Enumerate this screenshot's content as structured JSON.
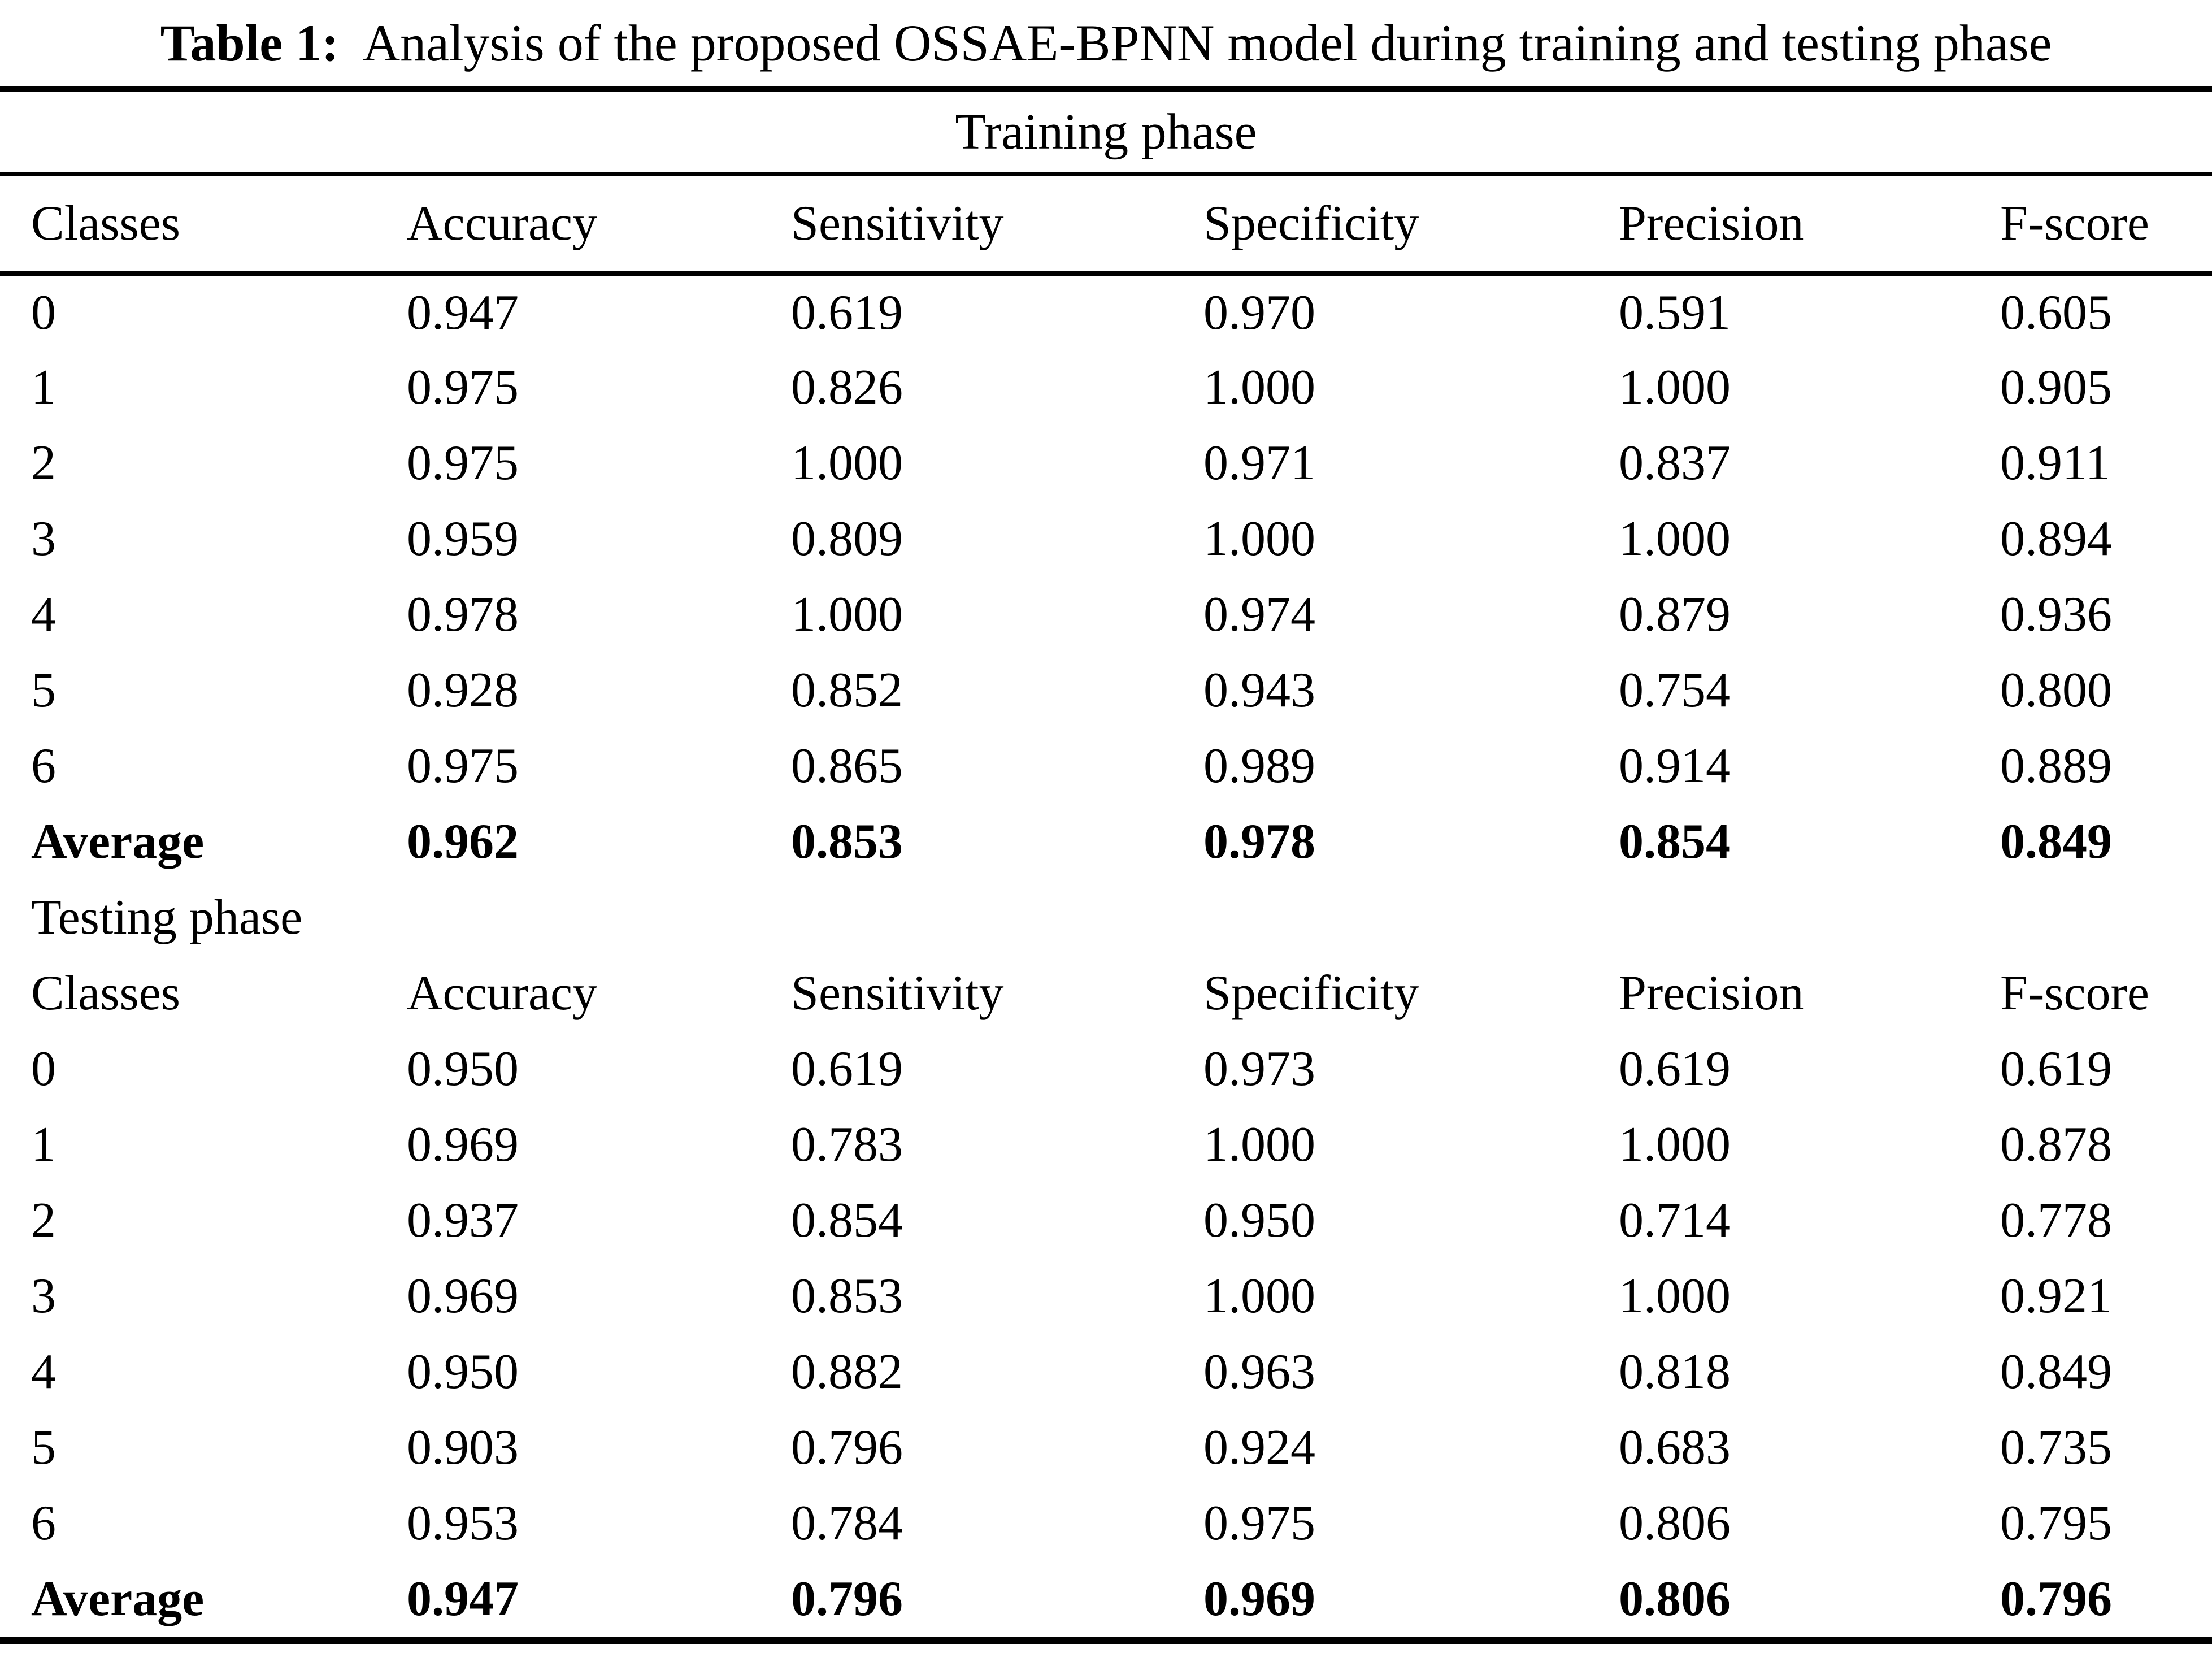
{
  "caption": {
    "label": "Table 1:",
    "text": "Analysis of the proposed OSSAE-BPNN model during training and testing phase"
  },
  "table": {
    "columns": [
      "Classes",
      "Accuracy",
      "Sensitivity",
      "Specificity",
      "Precision",
      "F-score"
    ],
    "sections": [
      {
        "title": "Training phase",
        "rows": [
          {
            "class": "0",
            "values": [
              "0.947",
              "0.619",
              "0.970",
              "0.591",
              "0.605"
            ],
            "bold": false
          },
          {
            "class": "1",
            "values": [
              "0.975",
              "0.826",
              "1.000",
              "1.000",
              "0.905"
            ],
            "bold": false
          },
          {
            "class": "2",
            "values": [
              "0.975",
              "1.000",
              "0.971",
              "0.837",
              "0.911"
            ],
            "bold": false
          },
          {
            "class": "3",
            "values": [
              "0.959",
              "0.809",
              "1.000",
              "1.000",
              "0.894"
            ],
            "bold": false
          },
          {
            "class": "4",
            "values": [
              "0.978",
              "1.000",
              "0.974",
              "0.879",
              "0.936"
            ],
            "bold": false
          },
          {
            "class": "5",
            "values": [
              "0.928",
              "0.852",
              "0.943",
              "0.754",
              "0.800"
            ],
            "bold": false
          },
          {
            "class": "6",
            "values": [
              "0.975",
              "0.865",
              "0.989",
              "0.914",
              "0.889"
            ],
            "bold": false
          },
          {
            "class": "Average",
            "values": [
              "0.962",
              "0.853",
              "0.978",
              "0.854",
              "0.849"
            ],
            "bold": true
          }
        ]
      },
      {
        "title": "Testing phase",
        "rows": [
          {
            "class": "0",
            "values": [
              "0.950",
              "0.619",
              "0.973",
              "0.619",
              "0.619"
            ],
            "bold": false
          },
          {
            "class": "1",
            "values": [
              "0.969",
              "0.783",
              "1.000",
              "1.000",
              "0.878"
            ],
            "bold": false
          },
          {
            "class": "2",
            "values": [
              "0.937",
              "0.854",
              "0.950",
              "0.714",
              "0.778"
            ],
            "bold": false
          },
          {
            "class": "3",
            "values": [
              "0.969",
              "0.853",
              "1.000",
              "1.000",
              "0.921"
            ],
            "bold": false
          },
          {
            "class": "4",
            "values": [
              "0.950",
              "0.882",
              "0.963",
              "0.818",
              "0.849"
            ],
            "bold": false
          },
          {
            "class": "5",
            "values": [
              "0.903",
              "0.796",
              "0.924",
              "0.683",
              "0.735"
            ],
            "bold": false
          },
          {
            "class": "6",
            "values": [
              "0.953",
              "0.784",
              "0.975",
              "0.806",
              "0.795"
            ],
            "bold": false
          },
          {
            "class": "Average",
            "values": [
              "0.947",
              "0.796",
              "0.969",
              "0.806",
              "0.796"
            ],
            "bold": true
          }
        ]
      }
    ]
  }
}
